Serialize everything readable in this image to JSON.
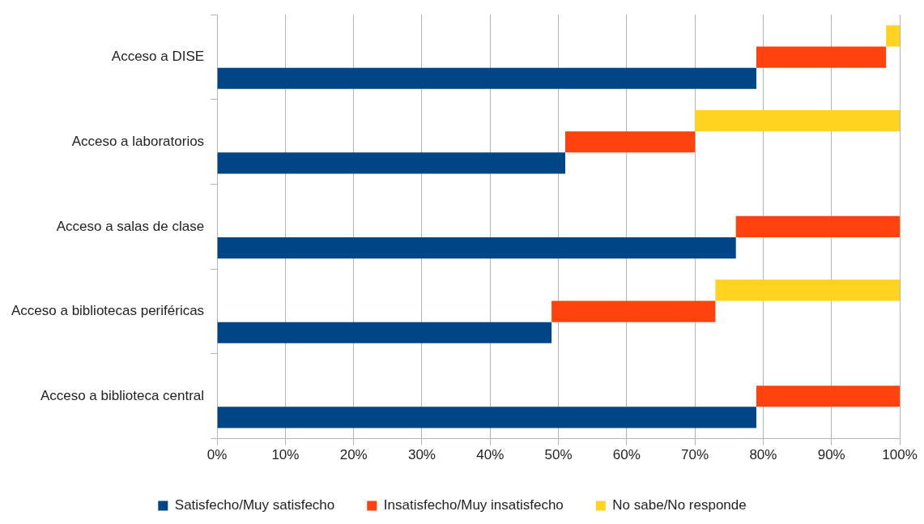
{
  "chart_data": {
    "type": "bar",
    "orientation": "horizontal",
    "categories": [
      "Acceso a DISE",
      "Acceso a laboratorios",
      "Acceso a salas de clase",
      "Acceso a bibliotecas periféricas",
      "Acceso a biblioteca central"
    ],
    "series": [
      {
        "name": "Satisfecho/Muy satisfecho",
        "color": "#004586",
        "values": [
          79,
          51,
          76,
          49,
          79
        ],
        "base": [
          0,
          0,
          0,
          0,
          0
        ]
      },
      {
        "name": "Insatisfecho/Muy insatisfecho",
        "color": "#ff420e",
        "values": [
          19,
          19,
          24,
          24,
          21
        ],
        "base": [
          79,
          51,
          76,
          49,
          79
        ]
      },
      {
        "name": "No sabe/No responde",
        "color": "#ffd320",
        "values": [
          2,
          30,
          null,
          27,
          null
        ],
        "base": [
          98,
          70,
          null,
          73,
          null
        ]
      }
    ],
    "xlim": [
      0,
      100
    ],
    "xticks": [
      {
        "value": 0,
        "label": "0%"
      },
      {
        "value": 10,
        "label": "10%"
      },
      {
        "value": 20,
        "label": "20%"
      },
      {
        "value": 30,
        "label": "30%"
      },
      {
        "value": 40,
        "label": "40%"
      },
      {
        "value": 50,
        "label": "50%"
      },
      {
        "value": 60,
        "label": "60%"
      },
      {
        "value": 70,
        "label": "70%"
      },
      {
        "value": 80,
        "label": "80%"
      },
      {
        "value": 90,
        "label": "90%"
      },
      {
        "value": 100,
        "label": "100%"
      }
    ],
    "grid": "x",
    "legend": "bottom"
  }
}
